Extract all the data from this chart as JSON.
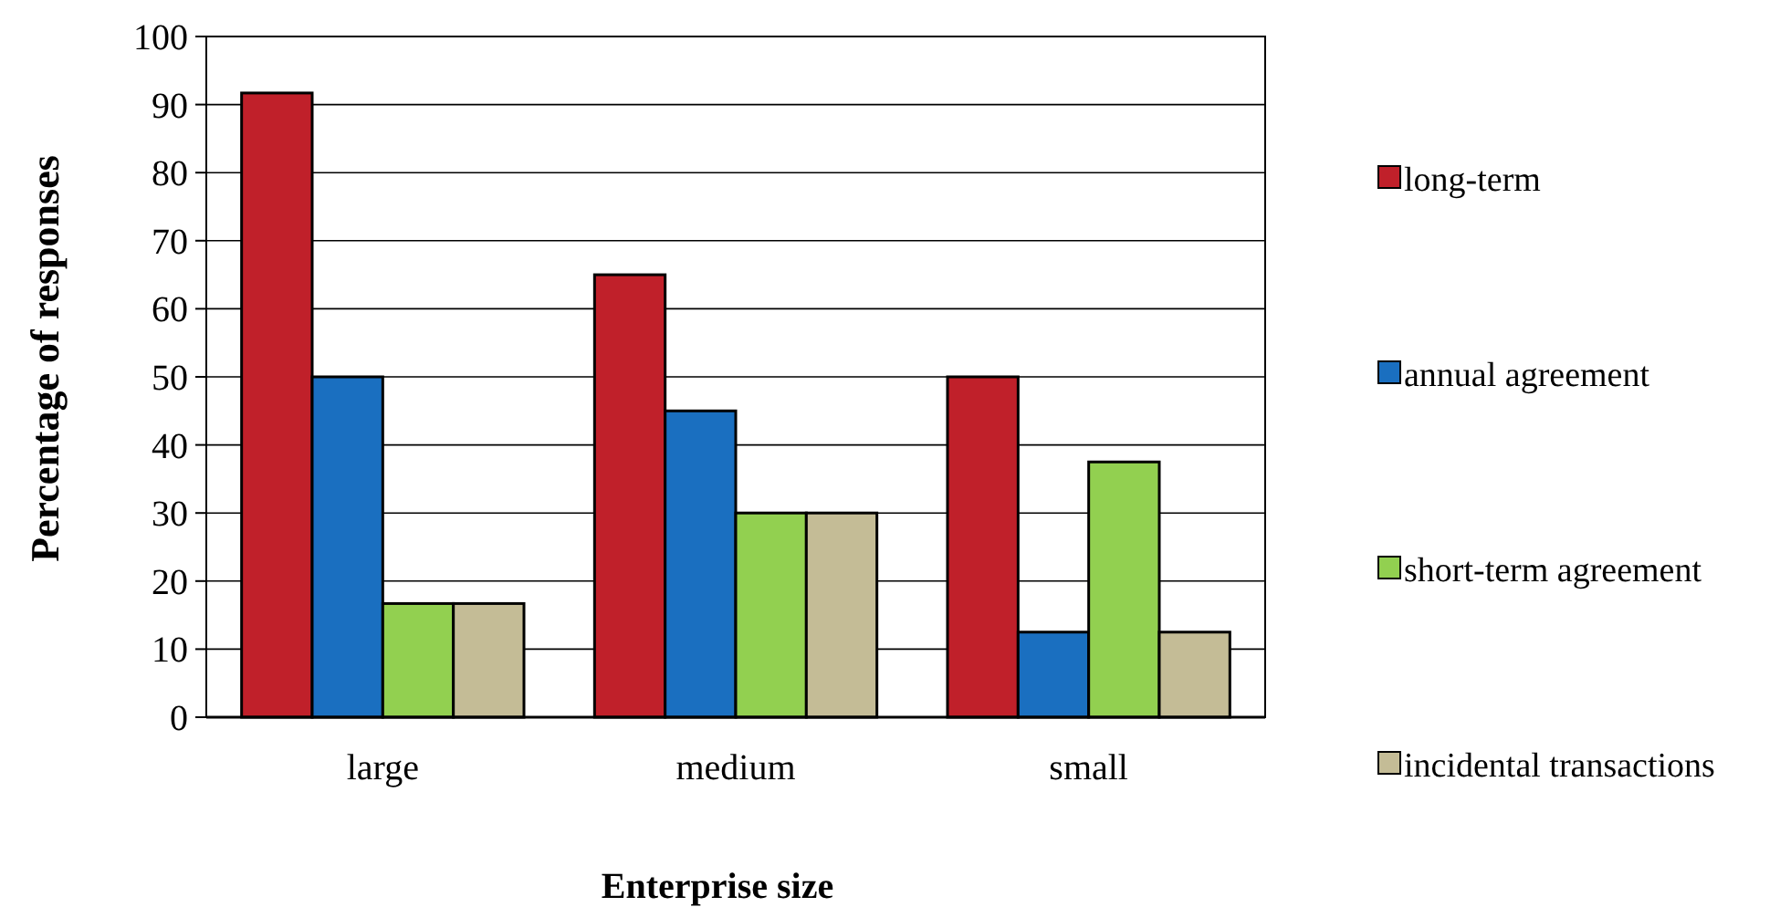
{
  "chart_data": {
    "type": "bar",
    "xlabel": "Enterprise size",
    "ylabel": "Percentage of responses",
    "categories": [
      "large",
      "medium",
      "small"
    ],
    "series": [
      {
        "name": "long-term",
        "color": "#c0202a",
        "values": [
          91.7,
          65,
          50
        ]
      },
      {
        "name": "annual agreement",
        "color": "#1a6fc0",
        "values": [
          50,
          45,
          12.5
        ]
      },
      {
        "name": "short-term agreement",
        "color": "#92d050",
        "values": [
          16.7,
          30,
          37.5
        ]
      },
      {
        "name": "incidental transactions",
        "color": "#c4bc96",
        "values": [
          16.7,
          30,
          12.5
        ]
      }
    ],
    "ylim": [
      0,
      100
    ],
    "yticks": [
      0,
      10,
      20,
      30,
      40,
      50,
      60,
      70,
      80,
      90,
      100
    ],
    "grid": "y",
    "legend": "right"
  }
}
